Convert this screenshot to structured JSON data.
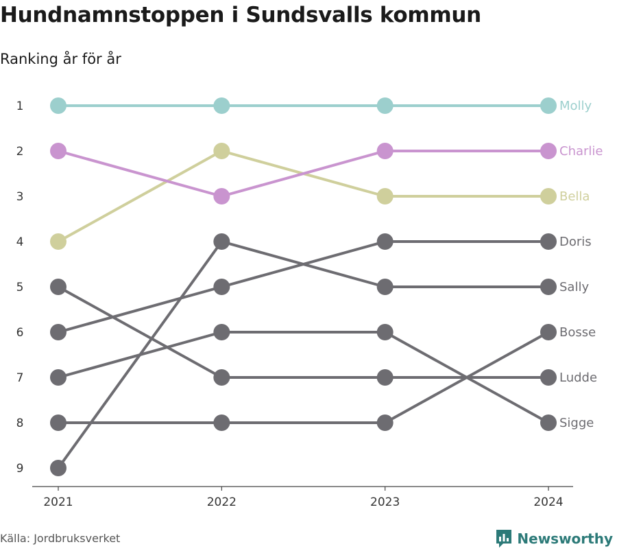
{
  "header": {
    "title": "Hundnamnstoppen i Sundsvalls kommun",
    "subtitle": "Ranking år för år"
  },
  "footer": {
    "source": "Källa: Jordbruksverket",
    "brand": "Newsworthy"
  },
  "chart_data": {
    "type": "line",
    "title": "Hundnamnstoppen i Sundsvalls kommun",
    "subtitle": "Ranking år för år",
    "x": [
      "2021",
      "2022",
      "2023",
      "2024"
    ],
    "y_ticks": [
      1,
      2,
      3,
      4,
      5,
      6,
      7,
      8,
      9
    ],
    "ylim": [
      1,
      9
    ],
    "y_reversed": true,
    "grid": false,
    "legend": "direct labels at right end of lines",
    "series": [
      {
        "name": "Molly",
        "values": [
          1,
          1,
          1,
          1
        ],
        "color": "#9ccfcd"
      },
      {
        "name": "Charlie",
        "values": [
          2,
          3,
          2,
          2
        ],
        "color": "#c994cf"
      },
      {
        "name": "Bella",
        "values": [
          4,
          2,
          3,
          3
        ],
        "color": "#cfcf9c"
      },
      {
        "name": "Doris",
        "values": [
          6,
          5,
          4,
          4
        ],
        "color": "#6d6c71"
      },
      {
        "name": "Sally",
        "values": [
          9,
          4,
          5,
          5
        ],
        "color": "#6d6c71"
      },
      {
        "name": "Bosse",
        "values": [
          8,
          8,
          8,
          6
        ],
        "color": "#6d6c71"
      },
      {
        "name": "Ludde",
        "values": [
          5,
          7,
          7,
          7
        ],
        "color": "#6d6c71"
      },
      {
        "name": "Sigge",
        "values": [
          7,
          6,
          6,
          8
        ],
        "color": "#6d6c71"
      }
    ]
  }
}
